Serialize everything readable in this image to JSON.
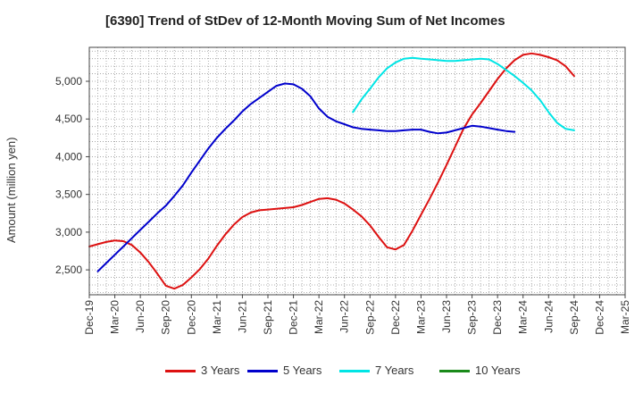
{
  "chart_data": {
    "type": "line",
    "title": "[6390]  Trend of StDev of 12-Month Moving Sum of Net Incomes",
    "ylabel": "Amount (million yen)",
    "xlabel": "",
    "x_tick_labels": [
      "Dec-19",
      "Mar-20",
      "Jun-20",
      "Sep-20",
      "Dec-20",
      "Mar-21",
      "Jun-21",
      "Sep-21",
      "Dec-21",
      "Mar-22",
      "Jun-22",
      "Sep-22",
      "Dec-22",
      "Mar-23",
      "Jun-23",
      "Sep-23",
      "Dec-23",
      "Mar-24",
      "Jun-24",
      "Sep-24",
      "Dec-24",
      "Mar-25"
    ],
    "y_ticks": [
      2500,
      3000,
      3500,
      4000,
      4500,
      5000
    ],
    "y_tick_labels": [
      "2,500",
      "3,000",
      "3,500",
      "4,000",
      "4,500",
      "5,000"
    ],
    "ylim": [
      2170,
      5450
    ],
    "grid": true,
    "legend_position": "bottom",
    "series": [
      {
        "name": "3 Years",
        "color": "#dd1111",
        "values": [
          2810,
          2840,
          2870,
          2890,
          2880,
          2830,
          2730,
          2600,
          2450,
          2290,
          2250,
          2300,
          2400,
          2510,
          2650,
          2820,
          2970,
          3100,
          3200,
          3260,
          3290,
          3300,
          3310,
          3320,
          3330,
          3360,
          3400,
          3440,
          3450,
          3430,
          3380,
          3300,
          3210,
          3090,
          2940,
          2800,
          2770,
          2830,
          3020,
          3230,
          3440,
          3660,
          3890,
          4130,
          4370,
          4560,
          4710,
          4870,
          5030,
          5170,
          5280,
          5350,
          5370,
          5350,
          5320,
          5280,
          5200,
          5070
        ]
      },
      {
        "name": "5 Years",
        "color": "#0000cc",
        "values": [
          null,
          2480,
          2590,
          2700,
          2810,
          2920,
          3030,
          3140,
          3250,
          3350,
          3480,
          3620,
          3790,
          3950,
          4110,
          4250,
          4370,
          4480,
          4600,
          4700,
          4780,
          4860,
          4940,
          4970,
          4960,
          4900,
          4800,
          4640,
          4530,
          4470,
          4430,
          4390,
          4370,
          4360,
          4350,
          4340,
          4340,
          4350,
          4360,
          4360,
          4330,
          4310,
          4320,
          4350,
          4380,
          4410,
          4400,
          4380,
          4360,
          4340,
          4330
        ]
      },
      {
        "name": "7 Years",
        "color": "#00e5e5",
        "values": [
          null,
          null,
          null,
          null,
          null,
          null,
          null,
          null,
          null,
          null,
          null,
          null,
          null,
          null,
          null,
          null,
          null,
          null,
          null,
          null,
          null,
          null,
          null,
          null,
          null,
          null,
          null,
          null,
          null,
          null,
          null,
          4590,
          4760,
          4900,
          5050,
          5170,
          5250,
          5300,
          5310,
          5300,
          5290,
          5280,
          5270,
          5270,
          5280,
          5290,
          5300,
          5290,
          5230,
          5150,
          5070,
          4980,
          4880,
          4750,
          4590,
          4450,
          4370,
          4350
        ]
      }
    ],
    "legend": [
      {
        "name": "3 Years",
        "color": "#dd1111"
      },
      {
        "name": "5 Years",
        "color": "#0000cc"
      },
      {
        "name": "7 Years",
        "color": "#00e5e5"
      },
      {
        "name": "10 Years",
        "color": "#1a8a1a"
      }
    ]
  }
}
